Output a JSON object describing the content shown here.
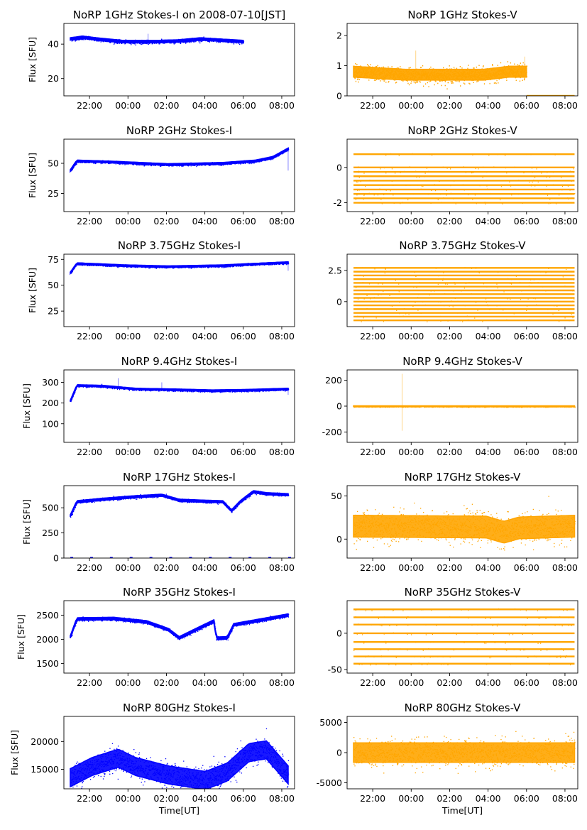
{
  "figure": {
    "colors": {
      "stokes_i": "#0000ff",
      "stokes_v": "#ffa500"
    },
    "x_tick_labels": [
      "22:00",
      "00:00",
      "02:00",
      "04:00",
      "06:00",
      "08:00"
    ]
  },
  "chart_data": [
    {
      "type": "scatter",
      "title": "NoRP 1GHz Stokes-I on 2008-07-10[JST]",
      "xlabel": "",
      "ylabel": "Flux [SFU]",
      "xlim": [
        "20:40",
        "08:40"
      ],
      "ylim": [
        10,
        52
      ],
      "y_ticks": [
        20,
        40
      ],
      "data_span": [
        "21:00",
        "06:00"
      ],
      "y_centerline": [
        [
          0,
          43
        ],
        [
          0.07,
          44
        ],
        [
          0.15,
          43
        ],
        [
          0.3,
          41.5
        ],
        [
          0.5,
          41.5
        ],
        [
          0.62,
          41.8
        ],
        [
          0.75,
          43
        ],
        [
          1,
          41.5
        ]
      ],
      "noise": 0.8,
      "spikes": [
        [
          0.45,
          46
        ],
        [
          0.55,
          41
        ]
      ],
      "color": "#0000ff"
    },
    {
      "type": "scatter",
      "title": "NoRP 1GHz Stokes-V",
      "xlabel": "",
      "ylabel": "",
      "xlim": [
        "20:40",
        "08:40"
      ],
      "ylim": [
        0,
        2.4
      ],
      "y_ticks": [
        0,
        1,
        2
      ],
      "data_span": [
        "21:00",
        "06:00"
      ],
      "y_centerline": [
        [
          0,
          0.8
        ],
        [
          0.3,
          0.7
        ],
        [
          0.75,
          0.7
        ],
        [
          0.9,
          0.8
        ],
        [
          1,
          0.8
        ]
      ],
      "noise": 0.2,
      "spikes": [
        [
          0.36,
          1.5
        ],
        [
          0.99,
          1.3
        ]
      ],
      "after_segment": {
        "span": [
          "06:00",
          "08:30"
        ],
        "value": 0.01
      },
      "color": "#ffa500"
    },
    {
      "type": "scatter",
      "title": "NoRP 2GHz Stokes-I",
      "xlabel": "",
      "ylabel": "Flux [SFU]",
      "xlim": [
        "20:40",
        "08:40"
      ],
      "ylim": [
        10,
        70
      ],
      "y_ticks": [
        25,
        50
      ],
      "data_span": [
        "21:00",
        "08:20"
      ],
      "y_centerline": [
        [
          0,
          44
        ],
        [
          0.03,
          52
        ],
        [
          0.2,
          51
        ],
        [
          0.45,
          49
        ],
        [
          0.7,
          50
        ],
        [
          0.85,
          52
        ],
        [
          0.93,
          55
        ],
        [
          1,
          62
        ]
      ],
      "noise": 0.8,
      "spikes": [
        [
          1,
          44
        ]
      ],
      "color": "#0000ff"
    },
    {
      "type": "scatter",
      "title": "NoRP 2GHz Stokes-V",
      "xlabel": "",
      "ylabel": "",
      "xlim": [
        "20:40",
        "08:40"
      ],
      "ylim": [
        -2.5,
        1.6
      ],
      "y_ticks": [
        -2,
        0
      ],
      "data_span": [
        "21:00",
        "08:30"
      ],
      "quantized_levels": [
        -2,
        -1.75,
        -1.5,
        -1.25,
        -1,
        -0.75,
        -0.5,
        -0.25,
        0,
        0.75
      ],
      "color": "#ffa500"
    },
    {
      "type": "scatter",
      "title": "NoRP 3.75GHz Stokes-I",
      "xlabel": "",
      "ylabel": "Flux [SFU]",
      "xlim": [
        "20:40",
        "08:40"
      ],
      "ylim": [
        10,
        80
      ],
      "y_ticks": [
        25,
        50,
        75
      ],
      "data_span": [
        "21:00",
        "08:20"
      ],
      "y_centerline": [
        [
          0,
          62
        ],
        [
          0.03,
          71
        ],
        [
          0.25,
          69
        ],
        [
          0.45,
          68
        ],
        [
          0.7,
          69
        ],
        [
          0.9,
          71
        ],
        [
          1,
          72
        ]
      ],
      "noise": 0.8,
      "spikes": [
        [
          1,
          64
        ]
      ],
      "color": "#0000ff"
    },
    {
      "type": "scatter",
      "title": "NoRP 3.75GHz Stokes-V",
      "xlabel": "",
      "ylabel": "",
      "xlim": [
        "20:40",
        "08:40"
      ],
      "ylim": [
        -2,
        3.8
      ],
      "y_ticks": [
        0.0,
        2.5
      ],
      "data_span": [
        "21:00",
        "08:30"
      ],
      "quantized_levels": [
        -1.5,
        -1.2,
        -0.9,
        -0.6,
        -0.3,
        0,
        0.3,
        0.6,
        0.9,
        1.2,
        1.5,
        1.8,
        2.1,
        2.4,
        2.7
      ],
      "color": "#ffa500"
    },
    {
      "type": "scatter",
      "title": "NoRP 9.4GHz Stokes-I",
      "xlabel": "",
      "ylabel": "Flux [SFU]",
      "xlim": [
        "20:40",
        "08:40"
      ],
      "ylim": [
        10,
        360
      ],
      "y_ticks": [
        100,
        200,
        300
      ],
      "data_span": [
        "21:00",
        "08:20"
      ],
      "y_centerline": [
        [
          0,
          210
        ],
        [
          0.03,
          285
        ],
        [
          0.15,
          282
        ],
        [
          0.3,
          268
        ],
        [
          0.5,
          264
        ],
        [
          0.65,
          260
        ],
        [
          0.8,
          262
        ],
        [
          1,
          268
        ]
      ],
      "noise": 4,
      "spikes": [
        [
          0.22,
          320
        ],
        [
          0.42,
          300
        ],
        [
          1,
          240
        ]
      ],
      "color": "#0000ff"
    },
    {
      "type": "scatter",
      "title": "NoRP 9.4GHz Stokes-V",
      "xlabel": "",
      "ylabel": "",
      "xlim": [
        "20:40",
        "08:40"
      ],
      "ylim": [
        -280,
        280
      ],
      "y_ticks": [
        -200,
        0,
        200
      ],
      "data_span": [
        "21:00",
        "08:30"
      ],
      "y_centerline": [
        [
          0,
          0
        ],
        [
          1,
          0
        ]
      ],
      "noise": 3,
      "spikes": [
        [
          0.22,
          250
        ],
        [
          0.22,
          -190
        ]
      ],
      "color": "#ffa500"
    },
    {
      "type": "scatter",
      "title": "NoRP 17GHz Stokes-I",
      "xlabel": "",
      "ylabel": "Flux [SFU]",
      "xlim": [
        "20:40",
        "08:40"
      ],
      "ylim": [
        0,
        720
      ],
      "y_ticks": [
        0,
        250,
        500
      ],
      "data_span": [
        "21:00",
        "08:20"
      ],
      "y_centerline": [
        [
          0,
          420
        ],
        [
          0.03,
          560
        ],
        [
          0.15,
          585
        ],
        [
          0.3,
          610
        ],
        [
          0.42,
          625
        ],
        [
          0.5,
          575
        ],
        [
          0.62,
          565
        ],
        [
          0.7,
          560
        ],
        [
          0.74,
          470
        ],
        [
          0.78,
          560
        ],
        [
          0.84,
          660
        ],
        [
          0.9,
          640
        ],
        [
          1,
          630
        ]
      ],
      "noise": 12,
      "baseline_dashes": 0,
      "color": "#0000ff"
    },
    {
      "type": "scatter",
      "title": "NoRP 17GHz Stokes-V",
      "xlabel": "",
      "ylabel": "",
      "xlim": [
        "20:40",
        "08:40"
      ],
      "ylim": [
        -22,
        62
      ],
      "y_ticks": [
        0,
        50
      ],
      "data_span": [
        "21:00",
        "08:30"
      ],
      "y_centerline": [
        [
          0,
          15
        ],
        [
          0.6,
          14
        ],
        [
          0.68,
          8
        ],
        [
          0.75,
          13
        ],
        [
          1,
          15
        ]
      ],
      "noise": 14,
      "color": "#ffa500"
    },
    {
      "type": "scatter",
      "title": "NoRP 35GHz Stokes-I",
      "xlabel": "",
      "ylabel": "Flux [SFU]",
      "xlim": [
        "20:40",
        "08:40"
      ],
      "ylim": [
        1300,
        2800
      ],
      "y_ticks": [
        1500,
        2000,
        2500
      ],
      "data_span": [
        "21:00",
        "08:20"
      ],
      "y_centerline": [
        [
          0,
          2050
        ],
        [
          0.03,
          2420
        ],
        [
          0.2,
          2430
        ],
        [
          0.35,
          2360
        ],
        [
          0.45,
          2200
        ],
        [
          0.5,
          2030
        ],
        [
          0.6,
          2250
        ],
        [
          0.66,
          2380
        ],
        [
          0.67,
          2020
        ],
        [
          0.72,
          2030
        ],
        [
          0.75,
          2300
        ],
        [
          0.9,
          2420
        ],
        [
          1,
          2500
        ]
      ],
      "noise": 30,
      "color": "#0000ff"
    },
    {
      "type": "scatter",
      "title": "NoRP 35GHz Stokes-V",
      "xlabel": "",
      "ylabel": "",
      "xlim": [
        "20:40",
        "08:40"
      ],
      "ylim": [
        -55,
        45
      ],
      "y_ticks": [
        -50,
        0
      ],
      "data_span": [
        "21:00",
        "08:30"
      ],
      "quantized_levels": [
        -42,
        -32,
        -22,
        -12,
        0,
        12,
        22,
        33
      ],
      "color": "#ffa500"
    },
    {
      "type": "scatter",
      "title": "NoRP 80GHz Stokes-I",
      "xlabel": "Time[UT]",
      "ylabel": "Flux [SFU]",
      "xlim": [
        "20:40",
        "08:40"
      ],
      "ylim": [
        11500,
        24500
      ],
      "y_ticks": [
        15000,
        20000
      ],
      "data_span": [
        "21:00",
        "08:20"
      ],
      "y_centerline": [
        [
          0,
          13500
        ],
        [
          0.1,
          15500
        ],
        [
          0.22,
          17000
        ],
        [
          0.3,
          15500
        ],
        [
          0.45,
          14000
        ],
        [
          0.62,
          13000
        ],
        [
          0.72,
          14500
        ],
        [
          0.82,
          18000
        ],
        [
          0.9,
          18500
        ],
        [
          1,
          14000
        ]
      ],
      "noise": 1800,
      "color": "#0000ff"
    },
    {
      "type": "scatter",
      "title": "NoRP 80GHz Stokes-V",
      "xlabel": "Time[UT]",
      "ylabel": "",
      "xlim": [
        "20:40",
        "08:40"
      ],
      "ylim": [
        -6000,
        6000
      ],
      "y_ticks": [
        -5000,
        0,
        5000
      ],
      "data_span": [
        "21:00",
        "08:30"
      ],
      "y_centerline": [
        [
          0,
          0
        ],
        [
          1,
          0
        ]
      ],
      "noise": 1800,
      "color": "#ffa500"
    }
  ]
}
